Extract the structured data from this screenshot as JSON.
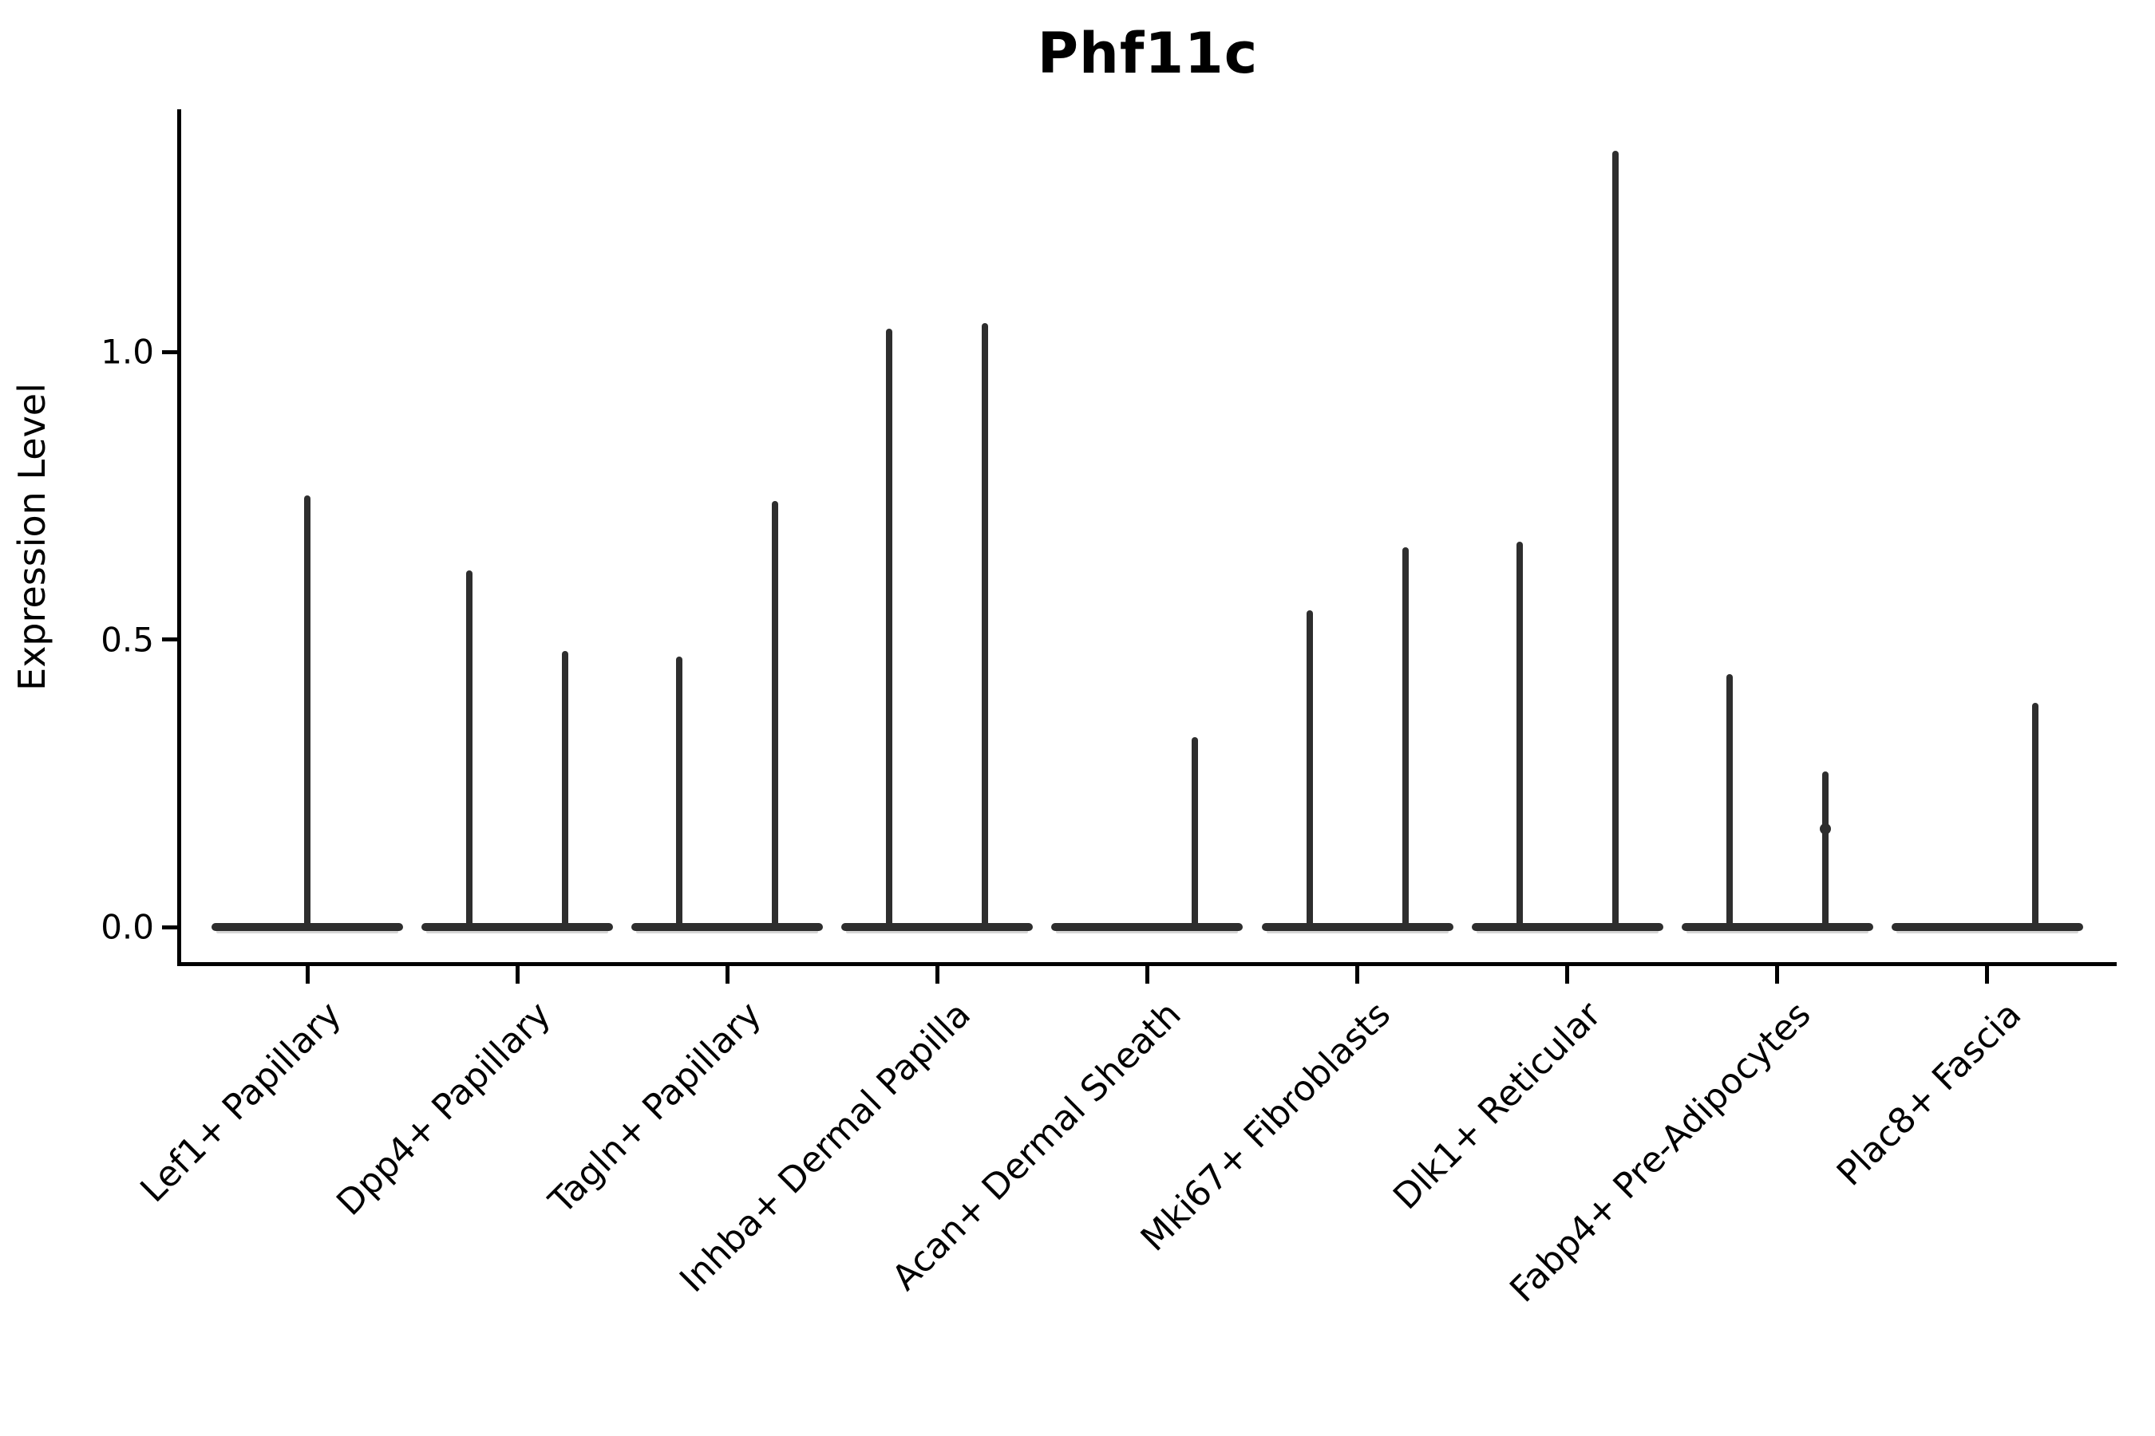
{
  "figure": {
    "title": "Phf11c",
    "ylabel": "Expression Level",
    "background": "#ffffff",
    "axis_color": "#000000",
    "violin_edge_color": "#2e2e2e",
    "violin_fill_color": "#d6d6d6"
  },
  "chart_data": {
    "type": "violin",
    "title": "Phf11c",
    "xlabel": "",
    "ylabel": "Expression Level",
    "yticks": [
      "0.0",
      "0.5",
      "1.0"
    ],
    "ytick_values": [
      0.0,
      0.5,
      1.0
    ],
    "ylim": [
      -0.07,
      1.42
    ],
    "grid": false,
    "legend": null,
    "note": "Width-flattened violins: density is concentrated at 0 expression (flat bar), with thin spikes rising to the maximum expression of rare expressing cells. Most categories contain two side-by-side sub-violins.",
    "categories": [
      {
        "label": "Lef1+ Papillary",
        "spikes": [
          {
            "position": "center",
            "max": 0.75
          }
        ]
      },
      {
        "label": "Dpp4+ Papillary",
        "spikes": [
          {
            "position": "left",
            "max": 0.62
          },
          {
            "position": "right",
            "max": 0.48
          }
        ]
      },
      {
        "label": "Tagln+ Papillary",
        "spikes": [
          {
            "position": "left",
            "max": 0.47
          },
          {
            "position": "right",
            "max": 0.74
          }
        ]
      },
      {
        "label": "Inhba+ Dermal Papilla",
        "spikes": [
          {
            "position": "left",
            "max": 1.04
          },
          {
            "position": "right",
            "max": 1.05
          }
        ]
      },
      {
        "label": "Acan+ Dermal Sheath",
        "spikes": [
          {
            "position": "right",
            "max": 0.33
          }
        ]
      },
      {
        "label": "Mki67+ Fibroblasts",
        "spikes": [
          {
            "position": "left",
            "max": 0.55
          },
          {
            "position": "right",
            "max": 0.66
          }
        ]
      },
      {
        "label": "Dlk1+ Reticular",
        "spikes": [
          {
            "position": "left",
            "max": 0.67
          },
          {
            "position": "right",
            "max": 1.35
          }
        ]
      },
      {
        "label": "Fabp4+ Pre-Adipocytes",
        "spikes": [
          {
            "position": "left",
            "max": 0.44
          },
          {
            "position": "right",
            "max": 0.27,
            "secondary_bump": 0.17
          }
        ]
      },
      {
        "label": "Plac8+ Fascia",
        "spikes": [
          {
            "position": "right",
            "max": 0.39
          }
        ]
      }
    ]
  }
}
